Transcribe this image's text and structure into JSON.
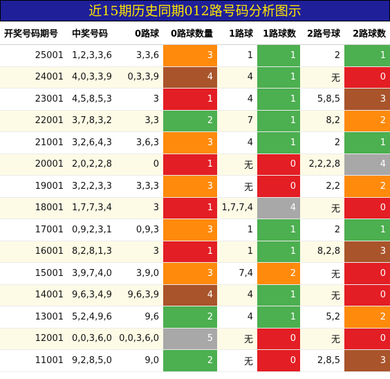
{
  "title": "近15期历史同期012路号码分析图示",
  "headers": [
    "开奖号码期号",
    "中奖号码",
    "0路球",
    "0路球数量",
    "1路球",
    "1路球数",
    "2路号球",
    "2路球数"
  ],
  "colors": {
    "green": "#4caf50",
    "orange": "#ff8a0c",
    "brown": "#a9542b",
    "red": "#e31e24",
    "gray": "#a8a8a8",
    "title_bg": "#1f1f9a",
    "title_text": "#ffe600"
  },
  "rows": [
    {
      "period": "25001",
      "numbers": "1,2,3,3,6",
      "r0": "3,3,6",
      "r0_count": "3",
      "r0_color": "o",
      "r1": "1",
      "r1_count": "1",
      "r1_color": "g",
      "r2": "2",
      "r2_count": "1",
      "r2_color": "g"
    },
    {
      "period": "24001",
      "numbers": "4,0,3,3,9",
      "r0": "0,3,3,9",
      "r0_count": "4",
      "r0_color": "b",
      "r1": "4",
      "r1_count": "1",
      "r1_color": "g",
      "r2": "无",
      "r2_count": "0",
      "r2_color": "rd"
    },
    {
      "period": "23001",
      "numbers": "4,5,8,5,3",
      "r0": "3",
      "r0_count": "1",
      "r0_color": "rd",
      "r1": "4",
      "r1_count": "1",
      "r1_color": "g",
      "r2": "5,8,5",
      "r2_count": "3",
      "r2_color": "b"
    },
    {
      "period": "22001",
      "numbers": "3,7,8,3,2",
      "r0": "3,3",
      "r0_count": "2",
      "r0_color": "g",
      "r1": "7",
      "r1_count": "1",
      "r1_color": "g",
      "r2": "8,2",
      "r2_count": "2",
      "r2_color": "o"
    },
    {
      "period": "21001",
      "numbers": "3,2,6,4,3",
      "r0": "3,6,3",
      "r0_count": "3",
      "r0_color": "o",
      "r1": "4",
      "r1_count": "1",
      "r1_color": "g",
      "r2": "2",
      "r2_count": "1",
      "r2_color": "g"
    },
    {
      "period": "20001",
      "numbers": "2,0,2,2,8",
      "r0": "0",
      "r0_count": "1",
      "r0_color": "rd",
      "r1": "无",
      "r1_count": "0",
      "r1_color": "rd",
      "r2": "2,2,2,8",
      "r2_count": "4",
      "r2_color": "gy"
    },
    {
      "period": "19001",
      "numbers": "3,2,2,3,3",
      "r0": "3,3,3",
      "r0_count": "3",
      "r0_color": "o",
      "r1": "无",
      "r1_count": "0",
      "r1_color": "rd",
      "r2": "2,2",
      "r2_count": "2",
      "r2_color": "o"
    },
    {
      "period": "18001",
      "numbers": "1,7,7,3,4",
      "r0": "3",
      "r0_count": "1",
      "r0_color": "rd",
      "r1": "1,7,7,4",
      "r1_count": "4",
      "r1_color": "gy",
      "r2": "无",
      "r2_count": "0",
      "r2_color": "rd"
    },
    {
      "period": "17001",
      "numbers": "0,9,2,3,1",
      "r0": "0,9,3",
      "r0_count": "3",
      "r0_color": "o",
      "r1": "1",
      "r1_count": "1",
      "r1_color": "g",
      "r2": "2",
      "r2_count": "1",
      "r2_color": "g"
    },
    {
      "period": "16001",
      "numbers": "8,2,8,1,3",
      "r0": "3",
      "r0_count": "1",
      "r0_color": "rd",
      "r1": "1",
      "r1_count": "1",
      "r1_color": "g",
      "r2": "8,2,8",
      "r2_count": "3",
      "r2_color": "b"
    },
    {
      "period": "15001",
      "numbers": "3,9,7,4,0",
      "r0": "3,9,0",
      "r0_count": "3",
      "r0_color": "o",
      "r1": "7,4",
      "r1_count": "2",
      "r1_color": "o",
      "r2": "无",
      "r2_count": "0",
      "r2_color": "rd"
    },
    {
      "period": "14001",
      "numbers": "9,6,3,4,9",
      "r0": "9,6,3,9",
      "r0_count": "4",
      "r0_color": "b",
      "r1": "4",
      "r1_count": "1",
      "r1_color": "g",
      "r2": "无",
      "r2_count": "0",
      "r2_color": "rd"
    },
    {
      "period": "13001",
      "numbers": "5,2,4,9,6",
      "r0": "9,6",
      "r0_count": "2",
      "r0_color": "g",
      "r1": "4",
      "r1_count": "1",
      "r1_color": "g",
      "r2": "5,2",
      "r2_count": "2",
      "r2_color": "o"
    },
    {
      "period": "12001",
      "numbers": "0,0,3,6,0",
      "r0": "0,0,3,6,0",
      "r0_count": "5",
      "r0_color": "gy",
      "r1": "无",
      "r1_count": "0",
      "r1_color": "rd",
      "r2": "无",
      "r2_count": "0",
      "r2_color": "rd"
    },
    {
      "period": "11001",
      "numbers": "9,2,8,5,0",
      "r0": "9,0",
      "r0_count": "2",
      "r0_color": "g",
      "r1": "无",
      "r1_count": "0",
      "r1_color": "rd",
      "r2": "2,8,5",
      "r2_count": "3",
      "r2_color": "b"
    }
  ]
}
